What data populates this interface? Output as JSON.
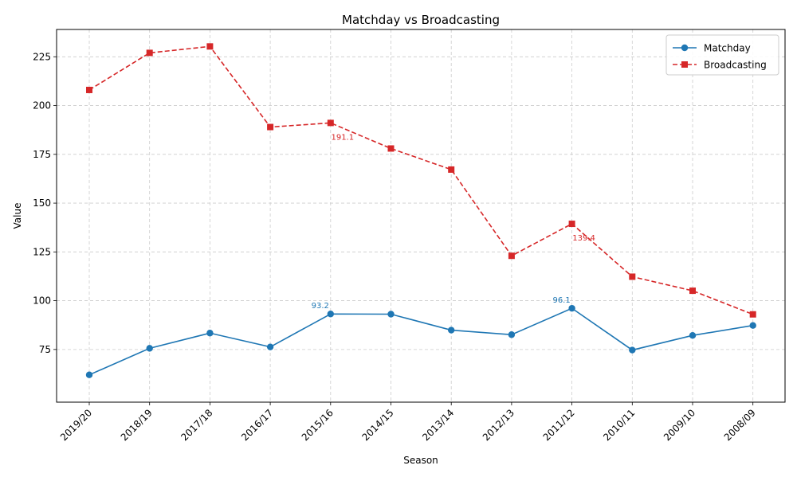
{
  "chart_data": {
    "type": "line",
    "title": "Matchday vs Broadcasting",
    "xlabel": "Season",
    "ylabel": "Value",
    "categories": [
      "2019/20",
      "2018/19",
      "2017/18",
      "2016/17",
      "2015/16",
      "2014/15",
      "2013/14",
      "2012/13",
      "2011/12",
      "2010/11",
      "2009/10",
      "2008/09"
    ],
    "ylim": [
      48,
      239
    ],
    "yticks": [
      75,
      100,
      125,
      150,
      175,
      200,
      225
    ],
    "grid": true,
    "legend_position": "top-right",
    "series": [
      {
        "name": "Matchday",
        "color": "#1f77b4",
        "line_style": "solid",
        "marker": "circle",
        "values": [
          62.0,
          75.6,
          83.4,
          76.3,
          93.2,
          93.1,
          84.9,
          82.6,
          96.1,
          74.7,
          82.2,
          87.3
        ]
      },
      {
        "name": "Broadcasting",
        "color": "#d62728",
        "line_style": "dashed",
        "marker": "square",
        "values": [
          208.0,
          227.0,
          230.3,
          189.0,
          191.1,
          178.0,
          167.2,
          123.0,
          139.4,
          112.3,
          105.1,
          93.0
        ]
      }
    ],
    "annotations": [
      {
        "series": 0,
        "index": 4,
        "text": "93.2"
      },
      {
        "series": 0,
        "index": 8,
        "text": "96.1"
      },
      {
        "series": 1,
        "index": 4,
        "text": "191.1"
      },
      {
        "series": 1,
        "index": 8,
        "text": "139.4"
      }
    ]
  }
}
